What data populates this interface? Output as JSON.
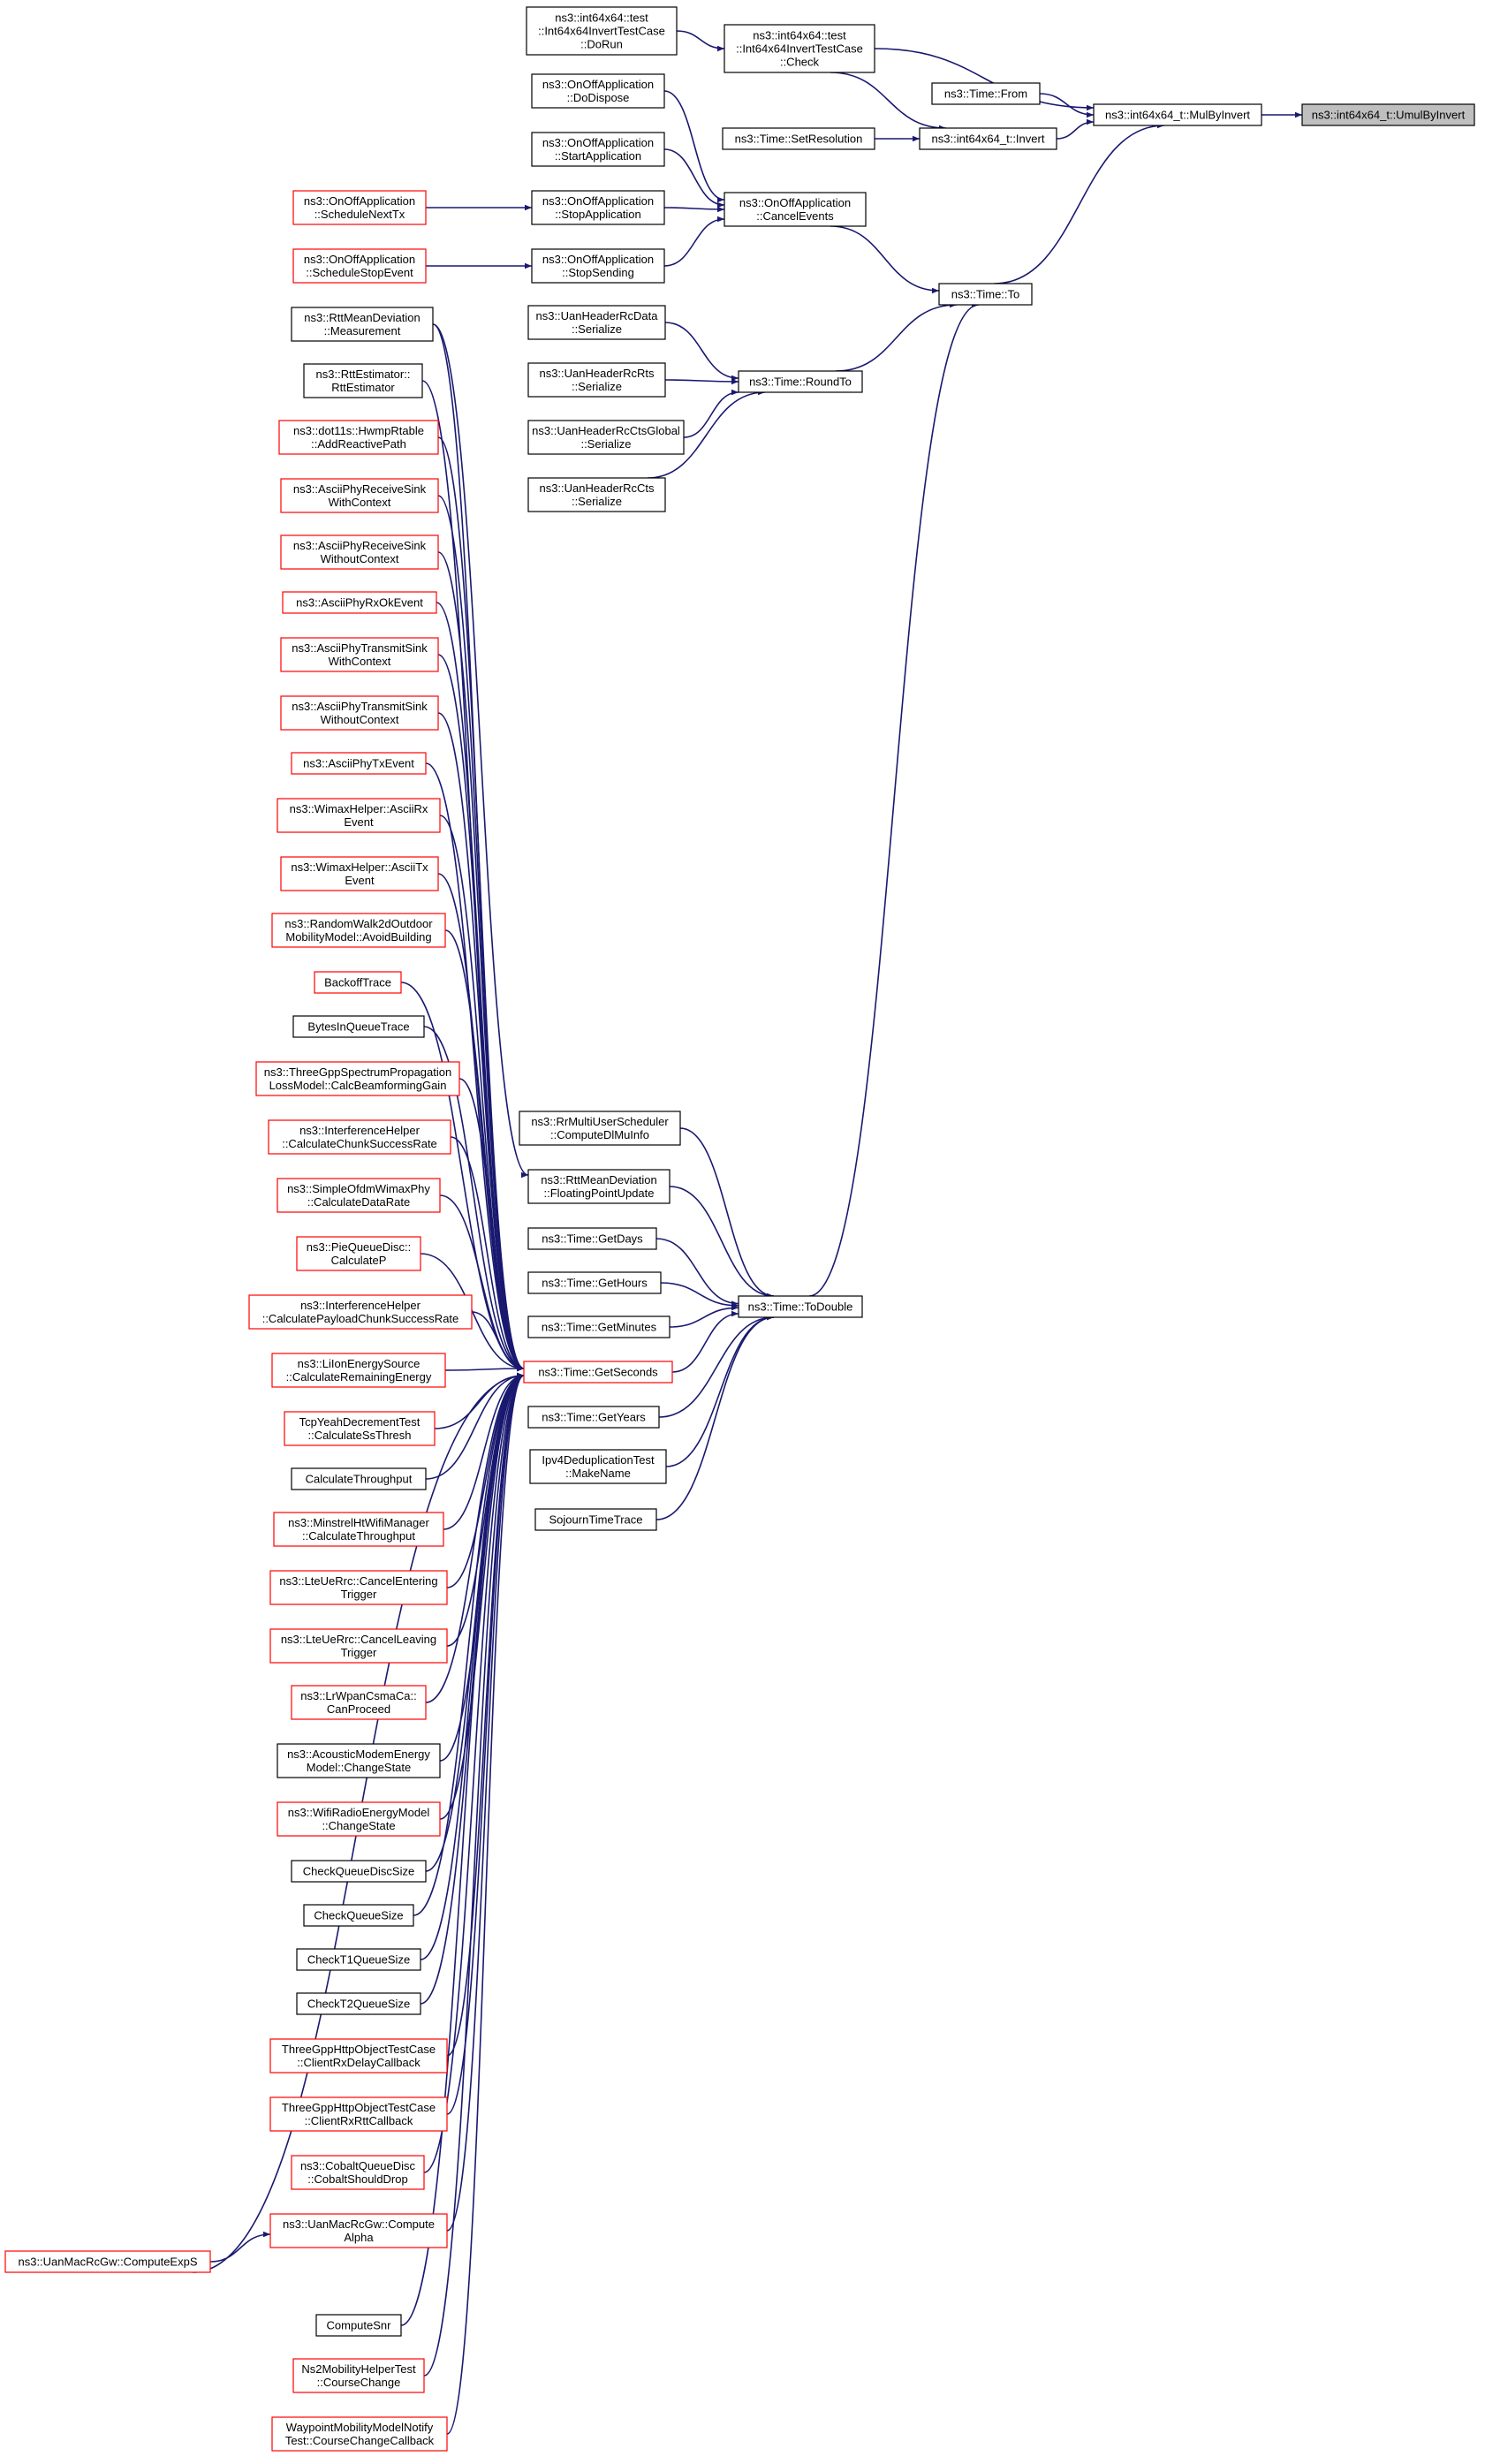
{
  "colors": {
    "edge": "#191970",
    "node_border_normal": "#000000",
    "node_border_truncated": "#ff0000",
    "node_fill": "#ffffff",
    "node_fill_focus": "#bfbfbf"
  },
  "nodes": [
    {
      "id": "umul",
      "lines": [
        "ns3::int64x64_t::UmulByInvert"
      ],
      "style": "focus"
    },
    {
      "id": "mulbyinvert",
      "lines": [
        "ns3::int64x64_t::MulByInvert"
      ],
      "style": "normal"
    },
    {
      "id": "check",
      "lines": [
        "ns3::int64x64::test",
        "::Int64x64InvertTestCase",
        "::Check"
      ],
      "style": "normal"
    },
    {
      "id": "dorun",
      "lines": [
        "ns3::int64x64::test",
        "::Int64x64InvertTestCase",
        "::DoRun"
      ],
      "style": "normal"
    },
    {
      "id": "from",
      "lines": [
        "ns3::Time::From"
      ],
      "style": "normal"
    },
    {
      "id": "invert",
      "lines": [
        "ns3::int64x64_t::Invert"
      ],
      "style": "normal"
    },
    {
      "id": "setres",
      "lines": [
        "ns3::Time::SetResolution"
      ],
      "style": "normal"
    },
    {
      "id": "to",
      "lines": [
        "ns3::Time::To"
      ],
      "style": "normal"
    },
    {
      "id": "cancelevents",
      "lines": [
        "ns3::OnOffApplication",
        "::CancelEvents"
      ],
      "style": "normal"
    },
    {
      "id": "dodispose",
      "lines": [
        "ns3::OnOffApplication",
        "::DoDispose"
      ],
      "style": "normal"
    },
    {
      "id": "startapp",
      "lines": [
        "ns3::OnOffApplication",
        "::StartApplication"
      ],
      "style": "normal"
    },
    {
      "id": "stopapp",
      "lines": [
        "ns3::OnOffApplication",
        "::StopApplication"
      ],
      "style": "normal"
    },
    {
      "id": "stopsending",
      "lines": [
        "ns3::OnOffApplication",
        "::StopSending"
      ],
      "style": "normal"
    },
    {
      "id": "schednexttx",
      "lines": [
        "ns3::OnOffApplication",
        "::ScheduleNextTx"
      ],
      "style": "truncated"
    },
    {
      "id": "schedstop",
      "lines": [
        "ns3::OnOffApplication",
        "::ScheduleStopEvent"
      ],
      "style": "truncated"
    },
    {
      "id": "roundto",
      "lines": [
        "ns3::Time::RoundTo"
      ],
      "style": "normal"
    },
    {
      "id": "uanrcdata",
      "lines": [
        "ns3::UanHeaderRcData",
        "::Serialize"
      ],
      "style": "normal"
    },
    {
      "id": "uanrcrts",
      "lines": [
        "ns3::UanHeaderRcRts",
        "::Serialize"
      ],
      "style": "normal"
    },
    {
      "id": "uanrcctsglobal",
      "lines": [
        "ns3::UanHeaderRcCtsGlobal",
        "::Serialize"
      ],
      "style": "normal"
    },
    {
      "id": "uanrccts",
      "lines": [
        "ns3::UanHeaderRcCts",
        "::Serialize"
      ],
      "style": "normal"
    },
    {
      "id": "todouble",
      "lines": [
        "ns3::Time::ToDouble"
      ],
      "style": "normal"
    },
    {
      "id": "rrmulti",
      "lines": [
        "ns3::RrMultiUserScheduler",
        "::ComputeDlMuInfo"
      ],
      "style": "normal"
    },
    {
      "id": "rttfloat",
      "lines": [
        "ns3::RttMeanDeviation",
        "::FloatingPointUpdate"
      ],
      "style": "normal"
    },
    {
      "id": "getdays",
      "lines": [
        "ns3::Time::GetDays"
      ],
      "style": "normal"
    },
    {
      "id": "gethours",
      "lines": [
        "ns3::Time::GetHours"
      ],
      "style": "normal"
    },
    {
      "id": "getminutes",
      "lines": [
        "ns3::Time::GetMinutes"
      ],
      "style": "normal"
    },
    {
      "id": "getseconds",
      "lines": [
        "ns3::Time::GetSeconds"
      ],
      "style": "truncated"
    },
    {
      "id": "getyears",
      "lines": [
        "ns3::Time::GetYears"
      ],
      "style": "normal"
    },
    {
      "id": "ipv4dedup",
      "lines": [
        "Ipv4DeduplicationTest",
        "::MakeName"
      ],
      "style": "normal"
    },
    {
      "id": "sojourn",
      "lines": [
        "SojournTimeTrace"
      ],
      "style": "normal"
    },
    {
      "id": "rttmeasure",
      "lines": [
        "ns3::RttMeanDeviation",
        "::Measurement"
      ],
      "style": "normal"
    },
    {
      "id": "rttestimator",
      "lines": [
        "ns3::RttEstimator::",
        "RttEstimator"
      ],
      "style": "normal"
    },
    {
      "id": "hwmp",
      "lines": [
        "ns3::dot11s::HwmpRtable",
        "::AddReactivePath"
      ],
      "style": "truncated"
    },
    {
      "id": "asciirxsinkwith",
      "lines": [
        "ns3::AsciiPhyReceiveSink",
        "WithContext"
      ],
      "style": "truncated"
    },
    {
      "id": "asciirxsinkwithout",
      "lines": [
        "ns3::AsciiPhyReceiveSink",
        "WithoutContext"
      ],
      "style": "truncated"
    },
    {
      "id": "asciirxok",
      "lines": [
        "ns3::AsciiPhyRxOkEvent"
      ],
      "style": "truncated"
    },
    {
      "id": "asciitxsinkwith",
      "lines": [
        "ns3::AsciiPhyTransmitSink",
        "WithContext"
      ],
      "style": "truncated"
    },
    {
      "id": "asciitxsinkwithout",
      "lines": [
        "ns3::AsciiPhyTransmitSink",
        "WithoutContext"
      ],
      "style": "truncated"
    },
    {
      "id": "asciitxevent",
      "lines": [
        "ns3::AsciiPhyTxEvent"
      ],
      "style": "truncated"
    },
    {
      "id": "wimaxrx",
      "lines": [
        "ns3::WimaxHelper::AsciiRx",
        "Event"
      ],
      "style": "truncated"
    },
    {
      "id": "wimaxtx",
      "lines": [
        "ns3::WimaxHelper::AsciiTx",
        "Event"
      ],
      "style": "truncated"
    },
    {
      "id": "randomwalk",
      "lines": [
        "ns3::RandomWalk2dOutdoor",
        "MobilityModel::AvoidBuilding"
      ],
      "style": "truncated"
    },
    {
      "id": "backoff",
      "lines": [
        "BackoffTrace"
      ],
      "style": "truncated"
    },
    {
      "id": "bytesinqueue",
      "lines": [
        "BytesInQueueTrace"
      ],
      "style": "normal"
    },
    {
      "id": "threegppspectrum",
      "lines": [
        "ns3::ThreeGppSpectrumPropagation",
        "LossModel::CalcBeamformingGain"
      ],
      "style": "truncated"
    },
    {
      "id": "interfchunk",
      "lines": [
        "ns3::InterferenceHelper",
        "::CalculateChunkSuccessRate"
      ],
      "style": "truncated"
    },
    {
      "id": "simpleofdm",
      "lines": [
        "ns3::SimpleOfdmWimaxPhy",
        "::CalculateDataRate"
      ],
      "style": "truncated"
    },
    {
      "id": "piequeue",
      "lines": [
        "ns3::PieQueueDisc::",
        "CalculateP"
      ],
      "style": "truncated"
    },
    {
      "id": "interfpayload",
      "lines": [
        "ns3::InterferenceHelper",
        "::CalculatePayloadChunkSuccessRate"
      ],
      "style": "truncated"
    },
    {
      "id": "liion",
      "lines": [
        "ns3::LiIonEnergySource",
        "::CalculateRemainingEnergy"
      ],
      "style": "truncated"
    },
    {
      "id": "tcpyeah",
      "lines": [
        "TcpYeahDecrementTest",
        "::CalculateSsThresh"
      ],
      "style": "truncated"
    },
    {
      "id": "calcthroughput",
      "lines": [
        "CalculateThroughput"
      ],
      "style": "normal"
    },
    {
      "id": "minstrel",
      "lines": [
        "ns3::MinstrelHtWifiManager",
        "::CalculateThroughput"
      ],
      "style": "truncated"
    },
    {
      "id": "lteentering",
      "lines": [
        "ns3::LteUeRrc::CancelEntering",
        "Trigger"
      ],
      "style": "truncated"
    },
    {
      "id": "lteleaving",
      "lines": [
        "ns3::LteUeRrc::CancelLeaving",
        "Trigger"
      ],
      "style": "truncated"
    },
    {
      "id": "lrwpan",
      "lines": [
        "ns3::LrWpanCsmaCa::",
        "CanProceed"
      ],
      "style": "truncated"
    },
    {
      "id": "acoustic",
      "lines": [
        "ns3::AcousticModemEnergy",
        "Model::ChangeState"
      ],
      "style": "normal"
    },
    {
      "id": "wifiradio",
      "lines": [
        "ns3::WifiRadioEnergyModel",
        "::ChangeState"
      ],
      "style": "truncated"
    },
    {
      "id": "checkqdisc",
      "lines": [
        "CheckQueueDiscSize"
      ],
      "style": "normal"
    },
    {
      "id": "checkqsize",
      "lines": [
        "CheckQueueSize"
      ],
      "style": "normal"
    },
    {
      "id": "checkt1",
      "lines": [
        "CheckT1QueueSize"
      ],
      "style": "normal"
    },
    {
      "id": "checkt2",
      "lines": [
        "CheckT2QueueSize"
      ],
      "style": "normal"
    },
    {
      "id": "threegpphttpdelay",
      "lines": [
        "ThreeGppHttpObjectTestCase",
        "::ClientRxDelayCallback"
      ],
      "style": "truncated"
    },
    {
      "id": "threegpphttprtt",
      "lines": [
        "ThreeGppHttpObjectTestCase",
        "::ClientRxRttCallback"
      ],
      "style": "truncated"
    },
    {
      "id": "cobalt",
      "lines": [
        "ns3::CobaltQueueDisc",
        "::CobaltShouldDrop"
      ],
      "style": "truncated"
    },
    {
      "id": "uanalpha",
      "lines": [
        "ns3::UanMacRcGw::Compute",
        "Alpha"
      ],
      "style": "truncated"
    },
    {
      "id": "uanexps",
      "lines": [
        "ns3::UanMacRcGw::ComputeExpS"
      ],
      "style": "truncated"
    },
    {
      "id": "computesnr",
      "lines": [
        "ComputeSnr"
      ],
      "style": "normal"
    },
    {
      "id": "ns2mobility",
      "lines": [
        "Ns2MobilityHelperTest",
        "::CourseChange"
      ],
      "style": "truncated"
    },
    {
      "id": "waypoint",
      "lines": [
        "WaypointMobilityModelNotify",
        "Test::CourseChangeCallback"
      ],
      "style": "truncated"
    }
  ]
}
